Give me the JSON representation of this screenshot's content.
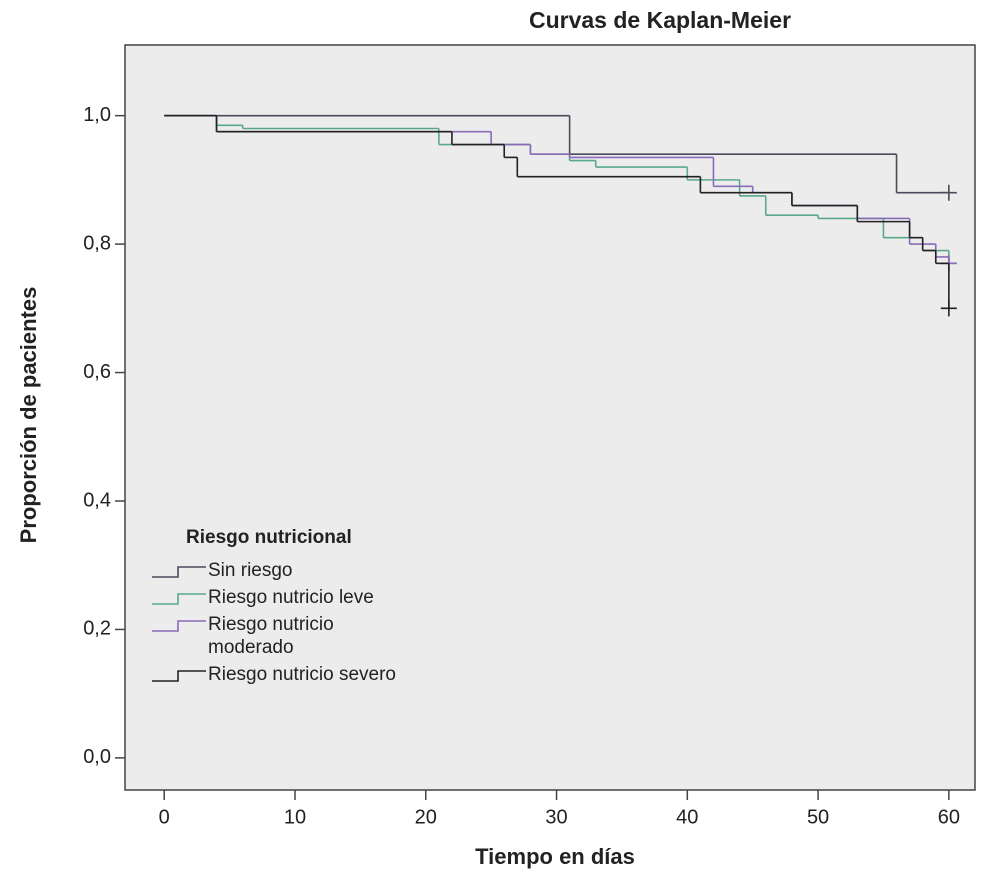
{
  "chart_data": {
    "type": "step",
    "title": "Curvas de Kaplan-Meier",
    "xlabel": "Tiempo en días",
    "ylabel": "Proporción de pacientes",
    "legend_title": "Riesgo nutricional",
    "xlim": [
      -3,
      62
    ],
    "ylim": [
      -0.05,
      1.11
    ],
    "xticks": [
      0,
      10,
      20,
      30,
      40,
      50,
      60
    ],
    "yticks": [
      {
        "value": 0,
        "label": "0,0"
      },
      {
        "value": 0.2,
        "label": "0,2"
      },
      {
        "value": 0.4,
        "label": "0,4"
      },
      {
        "value": 0.6,
        "label": "0,6"
      },
      {
        "value": 0.8,
        "label": "0,8"
      },
      {
        "value": 1,
        "label": "1,0"
      }
    ],
    "series": [
      {
        "name": "Sin riesgo",
        "color": "#4a4a5a",
        "x": [
          0,
          31,
          56,
          60
        ],
        "values": [
          1.0,
          0.94,
          0.88,
          0.88
        ]
      },
      {
        "name": "Riesgo nutricio leve",
        "color": "#5aa88a",
        "x": [
          0,
          4,
          6,
          21,
          28,
          31,
          33,
          40,
          44,
          46,
          50,
          55,
          58,
          60
        ],
        "values": [
          1.0,
          0.985,
          0.98,
          0.955,
          0.94,
          0.93,
          0.92,
          0.9,
          0.875,
          0.845,
          0.84,
          0.81,
          0.79,
          0.77
        ]
      },
      {
        "name": "Riesgo nutricio moderado",
        "color": "#8a6bb8",
        "x": [
          0,
          4,
          22,
          25,
          28,
          31,
          40,
          42,
          45,
          48,
          53,
          57,
          59,
          60
        ],
        "values": [
          1.0,
          0.975,
          0.975,
          0.955,
          0.94,
          0.935,
          0.935,
          0.89,
          0.88,
          0.86,
          0.84,
          0.8,
          0.78,
          0.77
        ]
      },
      {
        "name": "Riesgo nutricio severo",
        "color": "#222222",
        "x": [
          0,
          4,
          22,
          26,
          27,
          41,
          48,
          53,
          57,
          58,
          59,
          60
        ],
        "values": [
          1.0,
          0.975,
          0.955,
          0.935,
          0.905,
          0.88,
          0.86,
          0.835,
          0.81,
          0.79,
          0.77,
          0.7
        ]
      }
    ]
  }
}
